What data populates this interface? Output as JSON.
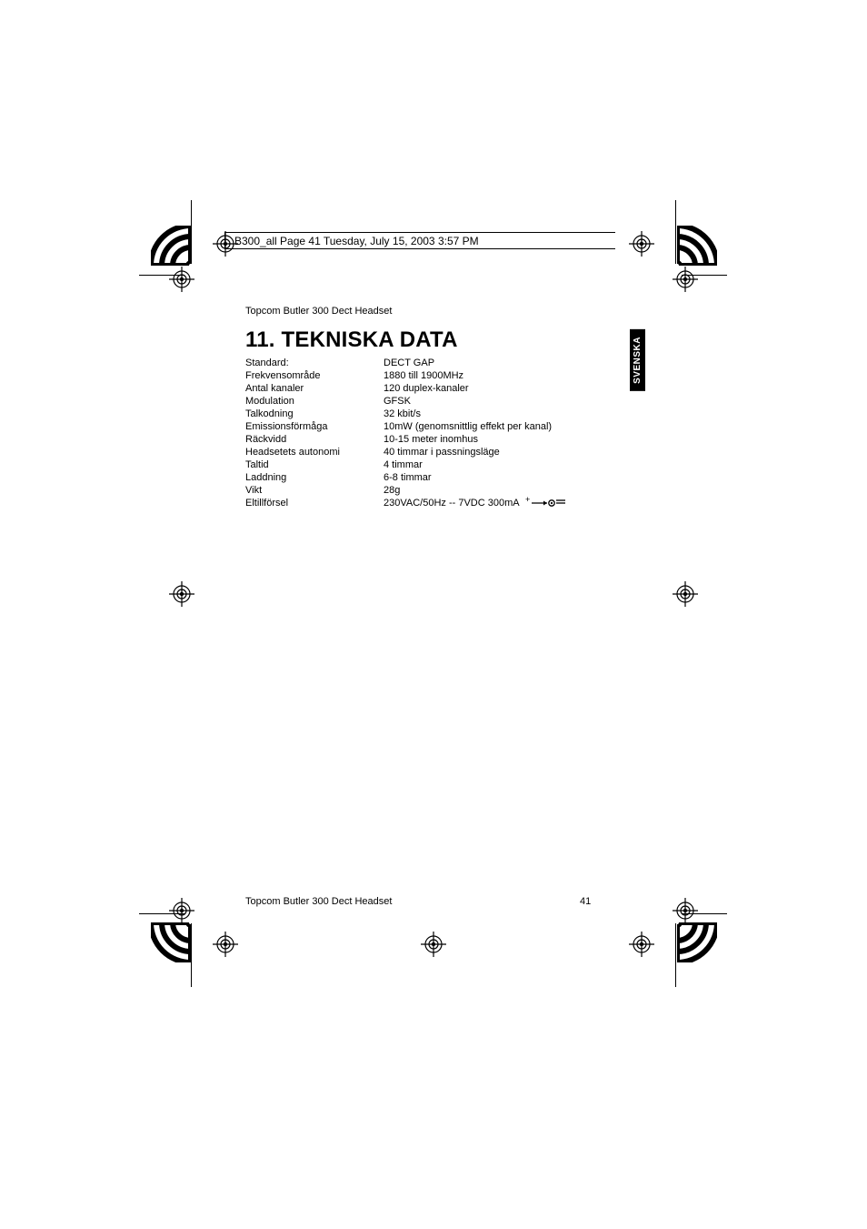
{
  "header": {
    "text": "B300_all  Page 41  Tuesday, July 15, 2003  3:57 PM"
  },
  "doc_title": "Topcom Butler 300 Dect Headset",
  "heading": "11. TEKNISKA DATA",
  "specs": [
    {
      "label": "Standard:",
      "value": "DECT GAP"
    },
    {
      "label": "Frekvensområde",
      "value": "1880 till 1900MHz"
    },
    {
      "label": "Antal kanaler",
      "value": "120 duplex-kanaler"
    },
    {
      "label": "Modulation",
      "value": "GFSK"
    },
    {
      "label": "Talkodning",
      "value": "32 kbit/s"
    },
    {
      "label": "Emissionsförmåga",
      "value": "10mW (genomsnittlig effekt per kanal)"
    },
    {
      "label": "Räckvidd",
      "value": "10-15 meter inomhus"
    },
    {
      "label": "Headsetets autonomi",
      "value": "40 timmar i passningsläge"
    },
    {
      "label": "Taltid",
      "value": "4 timmar"
    },
    {
      "label": "Laddning",
      "value": "6-8 timmar"
    },
    {
      "label": "Vikt",
      "value": "28g"
    },
    {
      "label": "Eltillförsel",
      "value": "230VAC/50Hz -- 7VDC 300mA",
      "polarity": true
    }
  ],
  "side_tab": "SVENSKA",
  "footer": {
    "title": "Topcom Butler 300 Dect Headset",
    "page": "41"
  }
}
